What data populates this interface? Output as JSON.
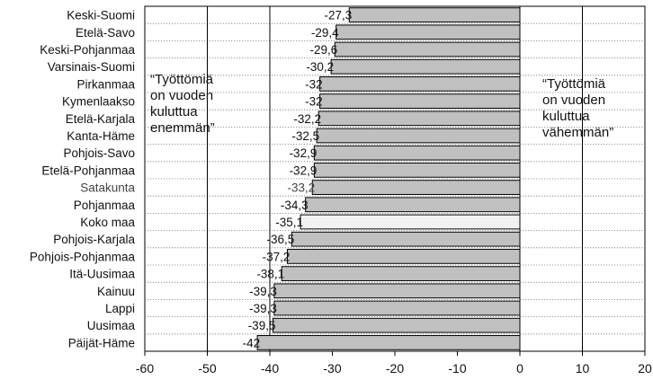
{
  "chart_data": {
    "type": "bar",
    "orientation": "horizontal",
    "title": "",
    "xlabel": "",
    "ylabel": "",
    "xlim": [
      -60,
      20
    ],
    "xticks": [
      -60,
      -50,
      -40,
      -30,
      -20,
      -10,
      0,
      10,
      20
    ],
    "grid": "vertical lines at -50, -40, 0, 10; dotted row separators",
    "categories": [
      "Keski-Suomi",
      "Etelä-Savo",
      "Keski-Pohjanmaa",
      "Varsinais-Suomi",
      "Pirkanmaa",
      "Kymenlaakso",
      "Etelä-Karjala",
      "Kanta-Häme",
      "Pohjois-Savo",
      "Etelä-Pohjanmaa",
      "Satakunta",
      "Pohjanmaa",
      "Koko maa",
      "Pohjois-Karjala",
      "Pohjois-Pohjanmaa",
      "Itä-Uusimaa",
      "Kainuu",
      "Lappi",
      "Uusimaa",
      "Päijät-Häme"
    ],
    "values": [
      -27.3,
      -29.4,
      -29.6,
      -30.2,
      -32,
      -32,
      -32.2,
      -32.5,
      -32.9,
      -32.9,
      -33.2,
      -34.3,
      -35.1,
      -36.5,
      -37.2,
      -38.1,
      -39.3,
      -39.3,
      -39.5,
      -42
    ],
    "value_labels": [
      "-27,3",
      "-29,4",
      "-29,6",
      "-30,2",
      "-32",
      "-32",
      "-32,2",
      "-32,5",
      "-32,9",
      "-32,9",
      "-33,2",
      "-34,3",
      "-35,1",
      "-36,5",
      "-37,2",
      "-38,1",
      "-39,3",
      "-39,3",
      "-39,5",
      "-42"
    ],
    "highlight": "Koko maa",
    "light_label_categories": [
      "Satakunta"
    ],
    "colors": {
      "bar": "#c0c0c0",
      "highlight_bar": "#f2f2f2",
      "outline": "#000000",
      "background": "#ffffff"
    },
    "annotations": [
      {
        "lines": [
          "“Työttömiä",
          "on vuoden",
          "kuluttua",
          "enemmän”"
        ],
        "placement": "left"
      },
      {
        "lines": [
          "“Työttömiä",
          "on vuoden",
          "kuluttua",
          "vähemmän”"
        ],
        "placement": "right"
      }
    ]
  }
}
